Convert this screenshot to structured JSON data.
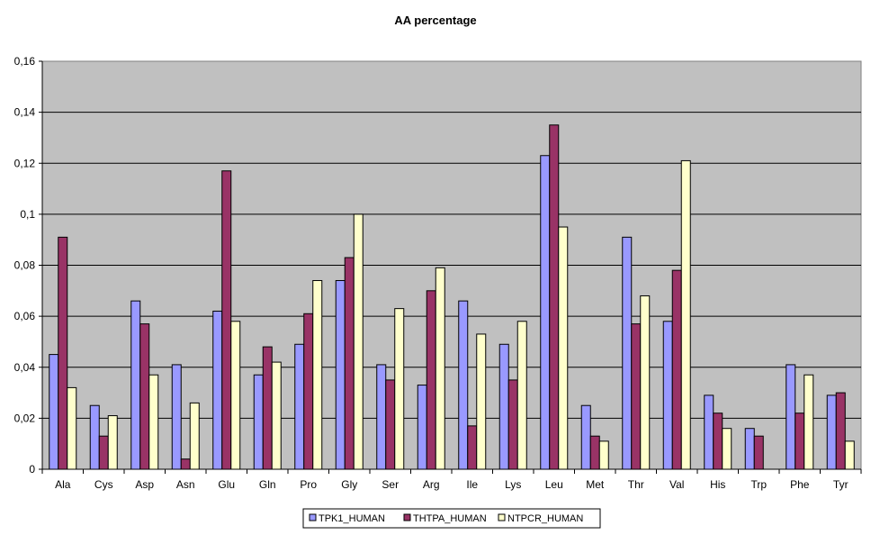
{
  "chart_data": {
    "type": "bar",
    "title": "AA percentage",
    "xlabel": "",
    "ylabel": "",
    "ylim": [
      0,
      0.16
    ],
    "yticks": [
      "0",
      "0,02",
      "0,04",
      "0,06",
      "0,08",
      "0,1",
      "0,12",
      "0,14",
      "0,16"
    ],
    "ytick_values": [
      0,
      0.02,
      0.04,
      0.06,
      0.08,
      0.1,
      0.12,
      0.14,
      0.16
    ],
    "grid": true,
    "legend_position": "bottom",
    "plot_background": "#c0c0c0",
    "categories": [
      "Ala",
      "Cys",
      "Asp",
      "Asn",
      "Glu",
      "Gln",
      "Pro",
      "Gly",
      "Ser",
      "Arg",
      "Ile",
      "Lys",
      "Leu",
      "Met",
      "Thr",
      "Val",
      "His",
      "Trp",
      "Phe",
      "Tyr"
    ],
    "series": [
      {
        "name": "TPK1_HUMAN",
        "color": "#9999ff",
        "values": [
          0.045,
          0.025,
          0.066,
          0.041,
          0.062,
          0.037,
          0.049,
          0.074,
          0.041,
          0.033,
          0.066,
          0.049,
          0.123,
          0.025,
          0.091,
          0.058,
          0.029,
          0.016,
          0.041,
          0.029
        ]
      },
      {
        "name": "THTPA_HUMAN",
        "color": "#993366",
        "values": [
          0.091,
          0.013,
          0.057,
          0.004,
          0.117,
          0.048,
          0.061,
          0.083,
          0.035,
          0.07,
          0.017,
          0.035,
          0.135,
          0.013,
          0.057,
          0.078,
          0.022,
          0.013,
          0.022,
          0.03
        ]
      },
      {
        "name": "NTPCR_HUMAN",
        "color": "#ffffcc",
        "values": [
          0.032,
          0.021,
          0.037,
          0.026,
          0.058,
          0.042,
          0.074,
          0.1,
          0.063,
          0.079,
          0.053,
          0.058,
          0.095,
          0.011,
          0.068,
          0.121,
          0.016,
          0,
          0.037,
          0.011
        ]
      }
    ]
  }
}
